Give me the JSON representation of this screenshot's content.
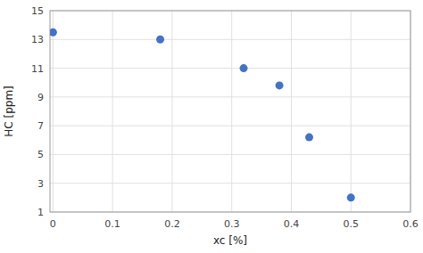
{
  "chart_data": {
    "type": "scatter",
    "x": [
      0.0,
      0.18,
      0.32,
      0.38,
      0.43,
      0.5
    ],
    "y": [
      13.5,
      13.0,
      11.0,
      9.8,
      6.2,
      2.0
    ],
    "color": "#4472c4",
    "xlabel": "xc [%]",
    "ylabel": "HC [ppm]",
    "xlim": [
      -0.005,
      0.6
    ],
    "ylim": [
      1,
      15
    ],
    "xticks": [
      0.0,
      0.1,
      0.2,
      0.3,
      0.4,
      0.5,
      0.6
    ],
    "yticks": [
      1,
      3,
      5,
      7,
      9,
      11,
      13,
      15
    ],
    "grid": true
  }
}
